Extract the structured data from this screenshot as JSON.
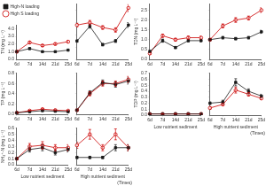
{
  "chart_data": [
    {
      "type": "line",
      "ylabel": "TN (mg L⁻¹)",
      "categories": [
        "6d",
        "7d",
        "14d",
        "21d",
        "25d"
      ],
      "series": [
        {
          "name": "High-N loading",
          "color": "#1a1a1a",
          "marker": "square",
          "values": [
            1.0,
            1.4,
            1.0,
            1.0,
            1.2
          ],
          "errors": [
            0.05,
            0.1,
            0.05,
            0.08,
            0.08
          ]
        },
        {
          "name": "High S loading",
          "color": "#cc0000",
          "marker": "circle",
          "values": [
            1.0,
            2.2,
            1.8,
            2.0,
            2.3
          ],
          "errors": [
            0.05,
            0.15,
            0.12,
            0.12,
            0.15
          ]
        }
      ],
      "ylim": [
        0.0,
        4.5
      ],
      "yticks": [
        {
          "value": 0,
          "label": "0.0"
        },
        {
          "value": 1,
          "label": "1.0"
        },
        {
          "value": 2,
          "label": "2.0"
        },
        {
          "value": 3,
          "label": "3.0"
        },
        {
          "value": 4,
          "label": "4.0"
        }
      ],
      "grid": false,
      "legend": "upper left"
    },
    {
      "type": "line",
      "categories": [
        "6d",
        "7d",
        "14d",
        "21d",
        "25d"
      ],
      "series": [
        {
          "name": "High-N loading",
          "color": "#1a1a1a",
          "marker": "square",
          "values": [
            1.5,
            2.7,
            1.2,
            1.5,
            2.8
          ],
          "errors": [
            0.1,
            0.15,
            0.1,
            0.12,
            0.2
          ]
        },
        {
          "name": "High S loading",
          "color": "#cc0000",
          "marker": "circle",
          "values": [
            2.8,
            3.0,
            2.6,
            2.4,
            4.2
          ],
          "errors": [
            0.15,
            0.18,
            0.15,
            0.18,
            0.3
          ]
        }
      ],
      "ylim": [
        0.0,
        4.5
      ],
      "yticks": [
        0,
        1,
        2,
        3,
        4
      ],
      "grid": false,
      "tick_labels": "x"
    },
    {
      "type": "line",
      "ylabel": "TDN (mg L⁻¹)",
      "categories": [
        "6d",
        "7d",
        "14d",
        "21d",
        "25d"
      ],
      "series": [
        {
          "name": "High-N loading",
          "color": "#1a1a1a",
          "marker": "square",
          "values": [
            0.4,
            0.95,
            0.6,
            0.95,
            0.95
          ],
          "errors": [
            0.04,
            0.08,
            0.05,
            0.06,
            0.06
          ]
        },
        {
          "name": "High S loading",
          "color": "#cc0000",
          "marker": "circle",
          "values": [
            0.3,
            1.2,
            1.0,
            1.1,
            1.1
          ],
          "errors": [
            0.04,
            0.08,
            0.07,
            0.08,
            0.08
          ]
        }
      ],
      "ylim": [
        0.0,
        2.8
      ],
      "yticks": [
        {
          "value": 0,
          "label": "0.0"
        },
        0.5,
        {
          "value": 1,
          "label": "1.0"
        },
        1.5,
        {
          "value": 2,
          "label": "2.0"
        },
        2.5
      ],
      "grid": false
    },
    {
      "type": "line",
      "categories": [
        "6d",
        "7d",
        "14d",
        "21d",
        "25d"
      ],
      "series": [
        {
          "name": "High-N loading",
          "color": "#1a1a1a",
          "marker": "square",
          "values": [
            1.0,
            1.1,
            1.05,
            1.1,
            1.4
          ],
          "errors": [
            0.06,
            0.06,
            0.06,
            0.06,
            0.08
          ]
        },
        {
          "name": "High S loading",
          "color": "#cc0000",
          "marker": "circle",
          "values": [
            1.0,
            1.7,
            2.0,
            2.1,
            2.5
          ],
          "errors": [
            0.06,
            0.1,
            0.12,
            0.1,
            0.12
          ]
        }
      ],
      "ylim": [
        0.0,
        2.8
      ],
      "yticks": [
        0,
        0.5,
        1,
        1.5,
        2,
        2.5
      ],
      "grid": false,
      "tick_labels": "x"
    },
    {
      "type": "line",
      "ylabel": "TP (mg L⁻¹)",
      "categories": [
        "6d",
        "7d",
        "14d",
        "21d",
        "25d"
      ],
      "series": [
        {
          "name": "High-N loading",
          "color": "#1a1a1a",
          "marker": "square",
          "values": [
            0.03,
            0.05,
            0.07,
            0.06,
            0.05
          ],
          "errors": [
            0.005,
            0.006,
            0.007,
            0.006,
            0.006
          ]
        },
        {
          "name": "High S loading",
          "color": "#cc0000",
          "marker": "circle",
          "values": [
            0.03,
            0.07,
            0.1,
            0.08,
            0.07
          ],
          "errors": [
            0.005,
            0.008,
            0.01,
            0.008,
            0.008
          ]
        }
      ],
      "ylim": [
        0.0,
        0.8
      ],
      "yticks": [
        {
          "value": 0,
          "label": "0.0"
        },
        0.2,
        0.4,
        0.6,
        0.8
      ],
      "grid": false
    },
    {
      "type": "line",
      "categories": [
        "6d",
        "7d",
        "14d",
        "21d",
        "25d"
      ],
      "series": [
        {
          "name": "High-N loading",
          "color": "#1a1a1a",
          "marker": "square",
          "values": [
            0.08,
            0.42,
            0.62,
            0.58,
            0.65
          ],
          "errors": [
            0.008,
            0.04,
            0.05,
            0.05,
            0.06
          ]
        },
        {
          "name": "High S loading",
          "color": "#cc0000",
          "marker": "circle",
          "values": [
            0.08,
            0.4,
            0.6,
            0.6,
            0.68
          ],
          "errors": [
            0.008,
            0.04,
            0.05,
            0.05,
            0.06
          ]
        }
      ],
      "ylim": [
        0.0,
        0.8
      ],
      "yticks": [
        0,
        0.2,
        0.4,
        0.6,
        0.8
      ],
      "grid": false,
      "tick_labels": "x"
    },
    {
      "type": "line",
      "ylabel": "TDP (mg L⁻¹)",
      "xlabel": "Low nutrient sediment",
      "categories": [
        "6d",
        "7d",
        "14d",
        "21d",
        "25d"
      ],
      "series": [
        {
          "name": "High-N loading",
          "color": "#1a1a1a",
          "marker": "square",
          "values": [
            0.02,
            0.02,
            0.02,
            0.02,
            0.02
          ],
          "errors": [
            0.002,
            0.002,
            0.002,
            0.002,
            0.002
          ]
        },
        {
          "name": "High S loading",
          "color": "#cc0000",
          "marker": "circle",
          "values": [
            0.02,
            0.02,
            0.02,
            0.02,
            0.02
          ],
          "errors": [
            0.002,
            0.002,
            0.002,
            0.002,
            0.002
          ]
        }
      ],
      "ylim": [
        0.0,
        0.7
      ],
      "yticks": [
        {
          "value": 0,
          "label": "0.0"
        },
        0.1,
        0.2,
        0.3,
        0.4,
        0.5,
        0.6,
        0.7
      ],
      "grid": false
    },
    {
      "type": "line",
      "xlabel": "High nutrient sediment",
      "annotations": [
        "(Times)"
      ],
      "categories": [
        "6d",
        "7d",
        "14d",
        "21d",
        "25d"
      ],
      "series": [
        {
          "name": "High-N loading",
          "color": "#1a1a1a",
          "marker": "square",
          "values": [
            0.2,
            0.22,
            0.55,
            0.4,
            0.32
          ],
          "errors": [
            0.02,
            0.03,
            0.06,
            0.04,
            0.03
          ]
        },
        {
          "name": "High S loading",
          "color": "#cc0000",
          "marker": "circle",
          "values": [
            0.12,
            0.18,
            0.42,
            0.35,
            0.28
          ],
          "errors": [
            0.02,
            0.02,
            0.05,
            0.03,
            0.02
          ]
        }
      ],
      "ylim": [
        0.0,
        0.7
      ],
      "yticks": [
        0,
        0.1,
        0.2,
        0.3,
        0.4,
        0.5,
        0.6,
        0.7
      ],
      "grid": false,
      "tick_labels": "x"
    },
    {
      "type": "line",
      "ylabel": "NH₄⁺-N (mg L⁻¹)",
      "xlabel": "Low nutrient sediment",
      "categories": [
        "6d",
        "7d",
        "14d",
        "21d",
        "25d"
      ],
      "series": [
        {
          "name": "High-N loading",
          "color": "#1a1a1a",
          "marker": "square",
          "values": [
            0.1,
            0.25,
            0.28,
            0.2,
            0.25
          ],
          "errors": [
            0.01,
            0.04,
            0.05,
            0.04,
            0.04
          ]
        },
        {
          "name": "High S loading",
          "color": "#cc0000",
          "marker": "circle",
          "values": [
            0.1,
            0.3,
            0.32,
            0.28,
            0.28
          ],
          "errors": [
            0.01,
            0.05,
            0.06,
            0.05,
            0.05
          ]
        }
      ],
      "ylim": [
        0.0,
        0.6
      ],
      "yticks": [
        {
          "value": 0,
          "label": "0.0"
        },
        0.1,
        0.2,
        0.3,
        0.4,
        0.5,
        0.6
      ],
      "grid": false
    },
    {
      "type": "line",
      "xlabel": "High nutrient sediment",
      "annotations": [
        "(Times)"
      ],
      "categories": [
        "6d",
        "7d",
        "14d",
        "21d",
        "25d"
      ],
      "series": [
        {
          "name": "High-N loading",
          "color": "#1a1a1a",
          "marker": "square",
          "values": [
            0.12,
            0.12,
            0.12,
            0.28,
            0.28
          ],
          "errors": [
            0.02,
            0.02,
            0.02,
            0.05,
            0.05
          ]
        },
        {
          "name": "High S loading",
          "color": "#cc0000",
          "marker": "circle",
          "values": [
            0.32,
            0.5,
            0.28,
            0.5,
            0.28
          ],
          "errors": [
            0.05,
            0.08,
            0.05,
            0.09,
            0.05
          ]
        }
      ],
      "ylim": [
        0.0,
        0.6
      ],
      "yticks": [
        0,
        0.1,
        0.2,
        0.3,
        0.4,
        0.5,
        0.6
      ],
      "grid": false,
      "tick_labels": "x"
    }
  ]
}
